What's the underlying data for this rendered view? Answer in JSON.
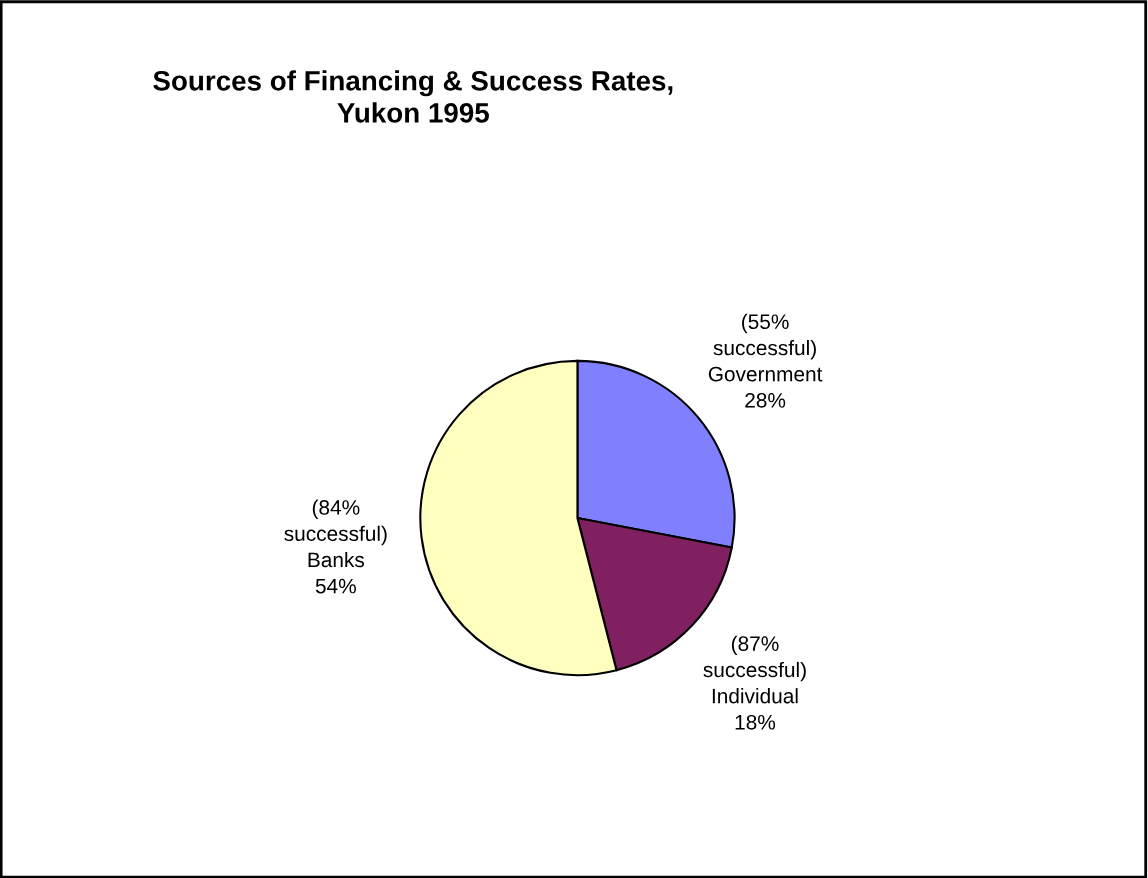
{
  "chart_data": {
    "type": "pie",
    "title": "Sources of Financing & Success Rates,\nYukon 1995",
    "categories": [
      "(55%\nsuccessful)\nGovernment",
      "(87%\nsuccessful)\nIndividual",
      "(84%\nsuccessful)\nBanks"
    ],
    "values": [
      28,
      18,
      54
    ],
    "value_labels": [
      "28%",
      "18%",
      "54%"
    ],
    "colors": [
      "#8080ff",
      "#802060",
      "#ffffc0"
    ],
    "legend": false
  }
}
